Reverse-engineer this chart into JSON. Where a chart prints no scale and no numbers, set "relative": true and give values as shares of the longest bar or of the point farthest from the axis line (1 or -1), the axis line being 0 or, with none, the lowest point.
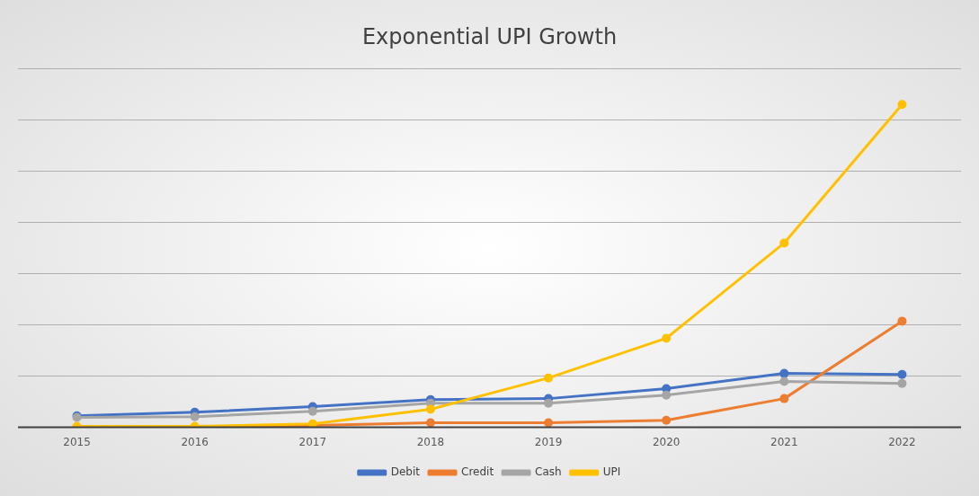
{
  "chart_data": {
    "type": "line",
    "title": "Exponential UPI Growth",
    "relative": true,
    "categories": [
      "2015",
      "2016",
      "2017",
      "2018",
      "2019",
      "2020",
      "2021",
      "2022"
    ],
    "series": [
      {
        "name": "Debit",
        "color": "#4472c4",
        "values": [
          0.036,
          0.047,
          0.064,
          0.086,
          0.089,
          0.12,
          0.167,
          0.164
        ]
      },
      {
        "name": "Credit",
        "color": "#ed7d31",
        "values": [
          0,
          0,
          0.006,
          0.014,
          0.014,
          0.022,
          0.089,
          0.329
        ]
      },
      {
        "name": "Cash",
        "color": "#a5a5a5",
        "values": [
          0.031,
          0.033,
          0.05,
          0.075,
          0.075,
          0.1,
          0.142,
          0.136
        ]
      },
      {
        "name": "UPI",
        "color": "#ffc000",
        "values": [
          0.003,
          0.003,
          0.011,
          0.056,
          0.153,
          0.276,
          0.571,
          1
        ]
      }
    ],
    "grid": "y",
    "legend": "bottom",
    "marker": "circle",
    "line_style": "solid"
  }
}
